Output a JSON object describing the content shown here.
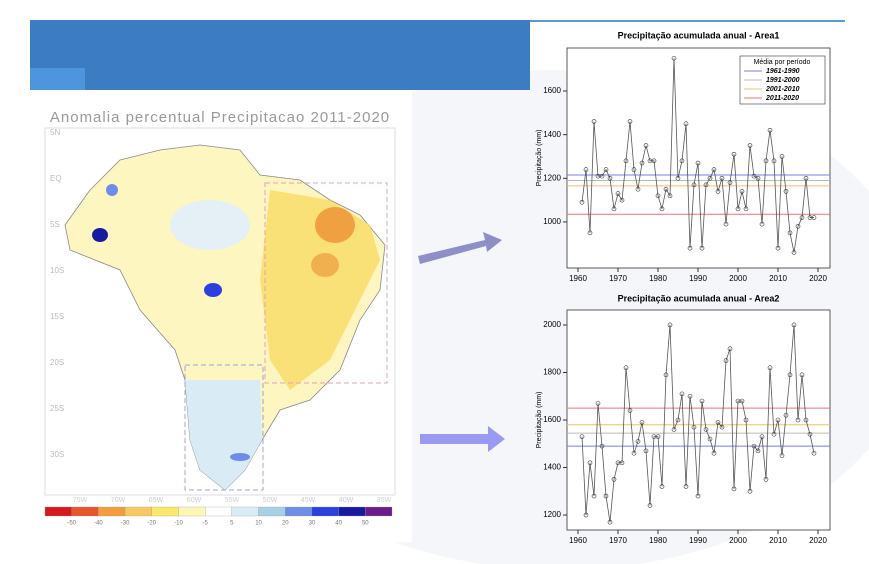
{
  "map": {
    "title": "Anomalia percentual Precipitacao 2011-2020",
    "lat_labels": [
      "5N",
      "EQ",
      "5S",
      "10S",
      "15S",
      "20S",
      "25S",
      "30S"
    ],
    "lon_labels": [
      "75W",
      "70W",
      "65W",
      "60W",
      "55W",
      "50W",
      "45W",
      "40W",
      "35W"
    ],
    "colorbar_ticks": [
      -50,
      -40,
      -30,
      -20,
      -10,
      -5,
      5,
      10,
      20,
      30,
      40,
      50
    ],
    "colorbar_colors": [
      "#d7191c",
      "#e8552a",
      "#f39c3c",
      "#f8c960",
      "#fbe96a",
      "#fdf7b6",
      "#ffffff",
      "#d9ecf5",
      "#a9cfe6",
      "#6f8de8",
      "#2c3fe0",
      "#1a1aa0",
      "#6b1e8a"
    ]
  },
  "chart_data": [
    {
      "type": "line",
      "title": "Precipitação acumulada anual - Area1",
      "ylabel": "Precipitação (mm)",
      "legend_title": "Média por período",
      "legend": "upper right",
      "x": [
        1961,
        1962,
        1963,
        1964,
        1965,
        1966,
        1967,
        1968,
        1969,
        1970,
        1971,
        1972,
        1973,
        1974,
        1975,
        1976,
        1977,
        1978,
        1979,
        1980,
        1981,
        1982,
        1983,
        1984,
        1985,
        1986,
        1987,
        1988,
        1989,
        1990,
        1991,
        1992,
        1993,
        1994,
        1995,
        1996,
        1997,
        1998,
        1999,
        2000,
        2001,
        2002,
        2003,
        2004,
        2005,
        2006,
        2007,
        2008,
        2009,
        2010,
        2011,
        2012,
        2013,
        2014,
        2015,
        2016,
        2017,
        2018,
        2019
      ],
      "series": [
        {
          "color": "#555555",
          "values": [
            1090,
            1240,
            950,
            1460,
            1210,
            1210,
            1240,
            1200,
            1060,
            1130,
            1100,
            1280,
            1460,
            1240,
            1150,
            1270,
            1350,
            1280,
            1280,
            1120,
            1060,
            1150,
            1120,
            1750,
            1200,
            1280,
            1450,
            880,
            1170,
            1270,
            880,
            1170,
            1200,
            1240,
            1140,
            1200,
            990,
            1180,
            1310,
            1060,
            1140,
            1060,
            1350,
            1210,
            1200,
            990,
            1280,
            1420,
            1280,
            880,
            1300,
            1140,
            950,
            860,
            980,
            1020,
            1200,
            1020,
            1020
          ]
        }
      ],
      "mean_lines": [
        {
          "name": "1961-1990",
          "color": "#7b7bf0",
          "value": 1215
        },
        {
          "name": "1991-2000",
          "color": "#bbbbbb",
          "value": 1190
        },
        {
          "name": "2001-2010",
          "color": "#f0c060",
          "value": 1165
        },
        {
          "name": "2011-2020",
          "color": "#f07070",
          "value": 1035
        }
      ],
      "xlim": [
        1957.25,
        2023
      ],
      "xticks": [
        1960,
        1970,
        1980,
        1990,
        2000,
        2010,
        2020
      ],
      "ylim": [
        789,
        1797
      ],
      "yticks": [
        1000,
        1200,
        1400,
        1600
      ]
    },
    {
      "type": "line",
      "title": "Precipitação acumulada anual - Area2",
      "ylabel": "Precipitação (mm)",
      "x": [
        1961,
        1962,
        1963,
        1964,
        1965,
        1966,
        1967,
        1968,
        1969,
        1970,
        1971,
        1972,
        1973,
        1974,
        1975,
        1976,
        1977,
        1978,
        1979,
        1980,
        1981,
        1982,
        1983,
        1984,
        1985,
        1986,
        1987,
        1988,
        1989,
        1990,
        1991,
        1992,
        1993,
        1994,
        1995,
        1996,
        1997,
        1998,
        1999,
        2000,
        2001,
        2002,
        2003,
        2004,
        2005,
        2006,
        2007,
        2008,
        2009,
        2010,
        2011,
        2012,
        2013,
        2014,
        2015,
        2016,
        2017,
        2018,
        2019
      ],
      "series": [
        {
          "color": "#555555",
          "values": [
            1530,
            1200,
            1420,
            1280,
            1670,
            1490,
            1280,
            1170,
            1350,
            1420,
            1420,
            1820,
            1640,
            1460,
            1510,
            1590,
            1470,
            1240,
            1530,
            1530,
            1320,
            1790,
            2000,
            1560,
            1600,
            1710,
            1320,
            1700,
            1570,
            1280,
            1680,
            1560,
            1520,
            1460,
            1590,
            1570,
            1850,
            1900,
            1310,
            1680,
            1680,
            1600,
            1300,
            1490,
            1470,
            1530,
            1350,
            1820,
            1540,
            1600,
            1450,
            1620,
            1790,
            2000,
            1600,
            1790,
            1600,
            1540,
            1460
          ]
        }
      ],
      "mean_lines": [
        {
          "color": "#7b7bf0",
          "value": 1490
        },
        {
          "color": "#bbbbbb",
          "value": 1545
        },
        {
          "color": "#f0c060",
          "value": 1580
        },
        {
          "color": "#f07070",
          "value": 1650
        }
      ],
      "xlim": [
        1957.25,
        2023
      ],
      "xticks": [
        1960,
        1970,
        1980,
        1990,
        2000,
        2010,
        2020
      ],
      "ylim": [
        1137,
        2063
      ],
      "yticks": [
        1200,
        1400,
        1600,
        1800,
        2000
      ]
    }
  ]
}
